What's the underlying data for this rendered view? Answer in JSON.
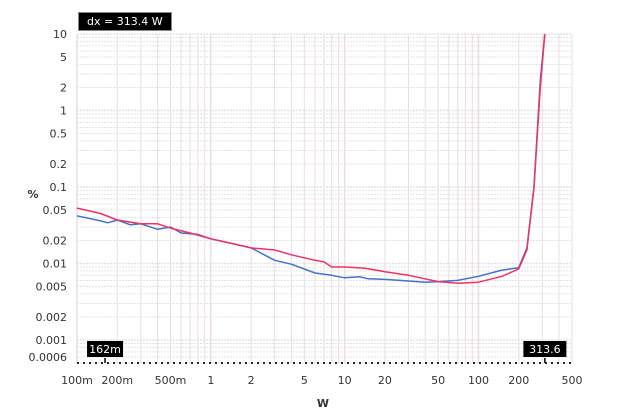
{
  "chart_data": {
    "type": "line",
    "title": "",
    "xlabel": "W",
    "ylabel": "%",
    "x_scale": "log",
    "y_scale": "log",
    "xlim": [
      0.1,
      500
    ],
    "ylim": [
      0.0005,
      10
    ],
    "grid": true,
    "x_ticks": [
      {
        "v": 0.1,
        "label": "100m"
      },
      {
        "v": 0.2,
        "label": "200m"
      },
      {
        "v": 0.5,
        "label": "500m"
      },
      {
        "v": 1,
        "label": "1"
      },
      {
        "v": 2,
        "label": "2"
      },
      {
        "v": 5,
        "label": "5"
      },
      {
        "v": 10,
        "label": "10"
      },
      {
        "v": 20,
        "label": "20"
      },
      {
        "v": 50,
        "label": "50"
      },
      {
        "v": 100,
        "label": "100"
      },
      {
        "v": 200,
        "label": "200"
      },
      {
        "v": 500,
        "label": "500"
      }
    ],
    "y_ticks": [
      {
        "v": 10,
        "label": "10"
      },
      {
        "v": 5,
        "label": "5"
      },
      {
        "v": 2,
        "label": "2"
      },
      {
        "v": 1,
        "label": "1"
      },
      {
        "v": 0.5,
        "label": "0.5"
      },
      {
        "v": 0.2,
        "label": "0.2"
      },
      {
        "v": 0.1,
        "label": "0.1"
      },
      {
        "v": 0.05,
        "label": "0.05"
      },
      {
        "v": 0.02,
        "label": "0.02"
      },
      {
        "v": 0.01,
        "label": "0.01"
      },
      {
        "v": 0.005,
        "label": "0.005"
      },
      {
        "v": 0.002,
        "label": "0.002"
      },
      {
        "v": 0.001,
        "label": "0.001"
      },
      {
        "v": 0.0006,
        "label": "0.0006"
      }
    ],
    "series": [
      {
        "color": "#4472c4",
        "points": [
          [
            0.1,
            0.042
          ],
          [
            0.15,
            0.036
          ],
          [
            0.17,
            0.034
          ],
          [
            0.2,
            0.037
          ],
          [
            0.25,
            0.032
          ],
          [
            0.3,
            0.033
          ],
          [
            0.4,
            0.028
          ],
          [
            0.5,
            0.03
          ],
          [
            0.6,
            0.025
          ],
          [
            0.8,
            0.024
          ],
          [
            1,
            0.021
          ],
          [
            1.5,
            0.018
          ],
          [
            2,
            0.016
          ],
          [
            3,
            0.011
          ],
          [
            4,
            0.0098
          ],
          [
            6,
            0.0075
          ],
          [
            8,
            0.007
          ],
          [
            10,
            0.0065
          ],
          [
            13,
            0.0067
          ],
          [
            15,
            0.0063
          ],
          [
            20,
            0.0062
          ],
          [
            30,
            0.0059
          ],
          [
            40,
            0.0057
          ],
          [
            50,
            0.0058
          ],
          [
            70,
            0.006
          ],
          [
            100,
            0.0068
          ],
          [
            150,
            0.0082
          ],
          [
            200,
            0.0088
          ],
          [
            230,
            0.016
          ],
          [
            260,
            0.1
          ],
          [
            290,
            2.5
          ],
          [
            313,
            10
          ]
        ]
      },
      {
        "color": "#ee3366",
        "points": [
          [
            0.1,
            0.053
          ],
          [
            0.15,
            0.045
          ],
          [
            0.2,
            0.037
          ],
          [
            0.3,
            0.033
          ],
          [
            0.4,
            0.033
          ],
          [
            0.5,
            0.029
          ],
          [
            0.7,
            0.025
          ],
          [
            1,
            0.021
          ],
          [
            2,
            0.016
          ],
          [
            3,
            0.015
          ],
          [
            4,
            0.013
          ],
          [
            6,
            0.011
          ],
          [
            7,
            0.0105
          ],
          [
            8,
            0.009
          ],
          [
            10,
            0.009
          ],
          [
            14,
            0.0087
          ],
          [
            20,
            0.0078
          ],
          [
            30,
            0.007
          ],
          [
            50,
            0.0058
          ],
          [
            70,
            0.0055
          ],
          [
            100,
            0.0057
          ],
          [
            150,
            0.0068
          ],
          [
            200,
            0.0085
          ],
          [
            230,
            0.015
          ],
          [
            260,
            0.1
          ],
          [
            290,
            2
          ],
          [
            313,
            10
          ]
        ]
      }
    ],
    "cursors": [
      {
        "x": 0.162,
        "label": "162m"
      },
      {
        "x": 313.6,
        "label": "313.6"
      }
    ],
    "readout": "dx = 313.4 W"
  }
}
